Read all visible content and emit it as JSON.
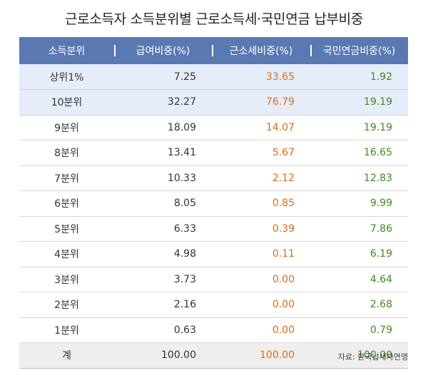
{
  "title": "근로소득자 소득분위별 근로소득세·국민연금 납부비중",
  "columns": [
    "소득분위",
    "급여비중(%)",
    "근소세비중(%)",
    "국민연금비중(%)"
  ],
  "rows": [
    {
      "label": "상위1%",
      "pay": "7.25",
      "tax": "33.65",
      "pension": "1.92"
    },
    {
      "label": "10분위",
      "pay": "32.27",
      "tax": "76.79",
      "pension": "19.19"
    },
    {
      "label": "9분위",
      "pay": "18.09",
      "tax": "14.07",
      "pension": "19.19"
    },
    {
      "label": "8분위",
      "pay": "13.41",
      "tax": "5.67",
      "pension": "16.65"
    },
    {
      "label": "7분위",
      "pay": "10.33",
      "tax": "2.12",
      "pension": "12.83"
    },
    {
      "label": "6분위",
      "pay": "8.05",
      "tax": "0.85",
      "pension": "9.99"
    },
    {
      "label": "5분위",
      "pay": "6.33",
      "tax": "0.39",
      "pension": "7.86"
    },
    {
      "label": "4분위",
      "pay": "4.98",
      "tax": "0.11",
      "pension": "6.19"
    },
    {
      "label": "3분위",
      "pay": "3.73",
      "tax": "0.00",
      "pension": "4.64"
    },
    {
      "label": "2분위",
      "pay": "2.16",
      "tax": "0.00",
      "pension": "2.68"
    },
    {
      "label": "1분위",
      "pay": "0.63",
      "tax": "0.00",
      "pension": "0.79"
    }
  ],
  "total": {
    "label": "계",
    "pay": "100.00",
    "tax": "100.00",
    "pension": "100.00"
  },
  "source": "자료: 한국납세자연맹",
  "colors": {
    "header_bg": "#5a79b3",
    "highlight_row_bg": "#e5edfa",
    "total_row_bg": "#eeeeee",
    "tax_text": "#e06a12",
    "pension_text": "#3f8a1c"
  }
}
